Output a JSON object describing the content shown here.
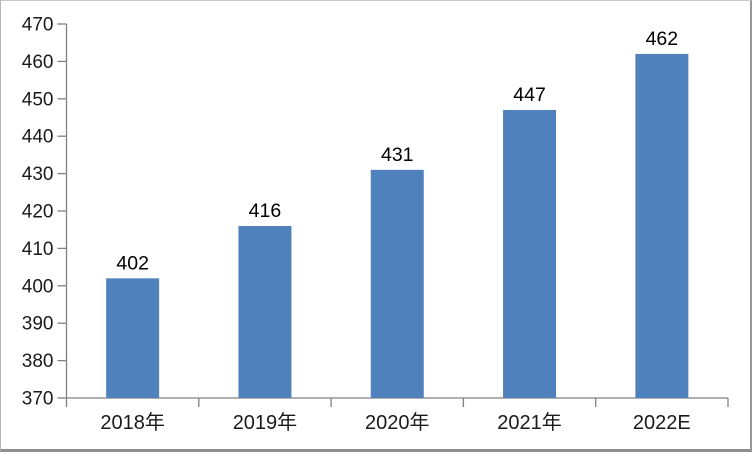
{
  "chart_data": {
    "type": "bar",
    "title": "",
    "xlabel": "",
    "ylabel": "",
    "categories": [
      "2018年",
      "2019年",
      "2020年",
      "2021年",
      "2022E"
    ],
    "values": [
      402,
      416,
      431,
      447,
      462
    ],
    "data_labels": [
      "402",
      "416",
      "431",
      "447",
      "462"
    ],
    "ylim": [
      370,
      470
    ],
    "ytick_step": 10,
    "ytick_labels": [
      "370",
      "380",
      "390",
      "400",
      "410",
      "420",
      "430",
      "440",
      "450",
      "460",
      "470"
    ],
    "grid": false,
    "legend_position": "none",
    "bar_color": "#4F81BD",
    "axis_color": "#808080",
    "axis_text_color": "#1a1a1a",
    "data_label_color": "#000000",
    "background_color": "#ffffff"
  }
}
